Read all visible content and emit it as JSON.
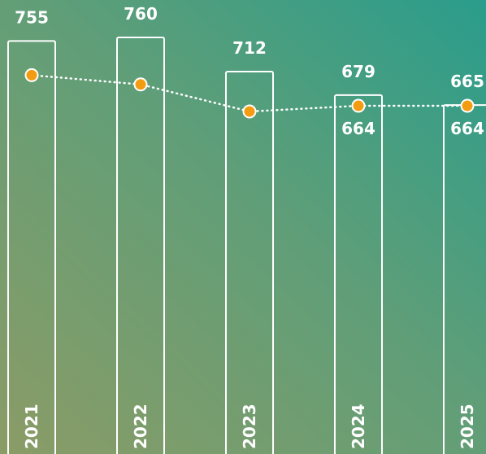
{
  "chart_data": {
    "type": "bar",
    "categories": [
      "2021",
      "2022",
      "2023",
      "2024",
      "2025"
    ],
    "values": [
      755,
      760,
      712,
      679,
      665
    ],
    "color": "#ffffff",
    "line": {
      "type": "line",
      "values": [
        707,
        694,
        656,
        664,
        664
      ],
      "value_labels": [
        null,
        null,
        null,
        "664",
        "664"
      ],
      "color": "#f39c12"
    }
  }
}
